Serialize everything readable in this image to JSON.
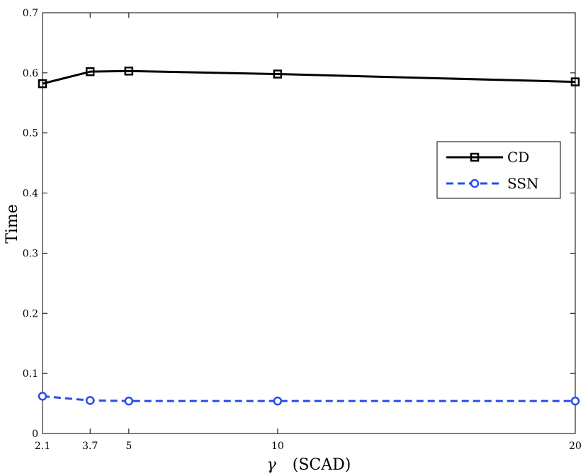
{
  "chart_data": {
    "type": "line",
    "title": "",
    "xlabel_symbol": "γ",
    "xlabel_text": "(SCAD)",
    "ylabel": "Time",
    "xlim": [
      2.1,
      20
    ],
    "ylim": [
      0,
      0.7
    ],
    "x_ticks": [
      2.1,
      3.7,
      5,
      10,
      20
    ],
    "x_tick_labels": [
      "2.1",
      "3.7",
      "5",
      "10",
      "20"
    ],
    "y_ticks": [
      0,
      0.1,
      0.2,
      0.3,
      0.4,
      0.5,
      0.6,
      0.7
    ],
    "y_tick_labels": [
      "0",
      "0.1",
      "0.2",
      "0.3",
      "0.4",
      "0.5",
      "0.6",
      "0.7"
    ],
    "grid": false,
    "legend_position": "center-right",
    "x": [
      2.1,
      3.7,
      5,
      10,
      20
    ],
    "series": [
      {
        "name": "CD",
        "values": [
          0.582,
          0.602,
          0.603,
          0.598,
          0.585
        ],
        "color": "#000000",
        "line_style": "solid",
        "marker": "square"
      },
      {
        "name": "SSN",
        "values": [
          0.062,
          0.055,
          0.054,
          0.054,
          0.054
        ],
        "color": "#2a4ce8",
        "line_style": "dashed",
        "marker": "circle"
      }
    ]
  }
}
